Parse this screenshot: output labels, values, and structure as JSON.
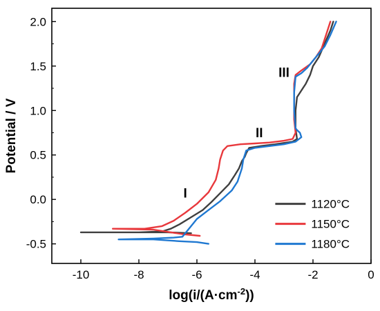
{
  "chart_data": {
    "type": "line",
    "xlabel": "log(i/(A·cm",
    "xlabel_sup": "-2",
    "xlabel_end": "))",
    "ylabel": "Potential / V",
    "xlim": [
      -11,
      0
    ],
    "ylim": [
      -0.72,
      2.15
    ],
    "x_ticks": [
      -10,
      -8,
      -6,
      -4,
      -2,
      0
    ],
    "x_tick_labels": [
      "-10",
      "-8",
      "-6",
      "-4",
      "-2",
      "0"
    ],
    "y_ticks": [
      -0.5,
      0.0,
      0.5,
      1.0,
      1.5,
      2.0
    ],
    "y_tick_labels": [
      "-0.5",
      "0.0",
      "0.5",
      "1.0",
      "1.5",
      "2.0"
    ],
    "grid": false,
    "legend_position": "bottom-right",
    "annotations": [
      {
        "text": "I",
        "x": -6.4,
        "y": 0.02
      },
      {
        "text": "II",
        "x": -3.85,
        "y": 0.7
      },
      {
        "text": "III",
        "x": -3.0,
        "y": 1.38
      }
    ],
    "series": [
      {
        "name": "1120°C",
        "color": "#3f3f3f",
        "points": [
          [
            -6.2,
            -0.38
          ],
          [
            -7.0,
            -0.37
          ],
          [
            -8.0,
            -0.37
          ],
          [
            -10.0,
            -0.37
          ],
          [
            -8.0,
            -0.37
          ],
          [
            -7.2,
            -0.36
          ],
          [
            -6.9,
            -0.33
          ],
          [
            -6.6,
            -0.28
          ],
          [
            -6.2,
            -0.2
          ],
          [
            -5.8,
            -0.12
          ],
          [
            -5.5,
            -0.03
          ],
          [
            -5.2,
            0.07
          ],
          [
            -4.9,
            0.17
          ],
          [
            -4.8,
            0.22
          ],
          [
            -4.7,
            0.27
          ],
          [
            -4.55,
            0.35
          ],
          [
            -4.45,
            0.43
          ],
          [
            -4.35,
            0.48
          ],
          [
            -4.3,
            0.52
          ],
          [
            -4.2,
            0.58
          ],
          [
            -3.8,
            0.6
          ],
          [
            -3.3,
            0.62
          ],
          [
            -2.9,
            0.64
          ],
          [
            -2.7,
            0.65
          ],
          [
            -2.55,
            0.68
          ],
          [
            -2.6,
            0.8
          ],
          [
            -2.6,
            1.0
          ],
          [
            -2.55,
            1.15
          ],
          [
            -2.45,
            1.2
          ],
          [
            -2.35,
            1.25
          ],
          [
            -2.25,
            1.3
          ],
          [
            -2.1,
            1.4
          ],
          [
            -2.0,
            1.5
          ],
          [
            -1.8,
            1.6
          ],
          [
            -1.6,
            1.75
          ],
          [
            -1.4,
            1.9
          ],
          [
            -1.3,
            2.0
          ]
        ]
      },
      {
        "name": "1150°C",
        "color": "#e8383c",
        "points": [
          [
            -5.9,
            -0.41
          ],
          [
            -6.5,
            -0.39
          ],
          [
            -7.5,
            -0.34
          ],
          [
            -8.9,
            -0.33
          ],
          [
            -7.8,
            -0.33
          ],
          [
            -7.2,
            -0.3
          ],
          [
            -6.8,
            -0.24
          ],
          [
            -6.4,
            -0.15
          ],
          [
            -6.0,
            -0.05
          ],
          [
            -5.6,
            0.08
          ],
          [
            -5.35,
            0.22
          ],
          [
            -5.25,
            0.35
          ],
          [
            -5.2,
            0.45
          ],
          [
            -5.1,
            0.55
          ],
          [
            -4.95,
            0.6
          ],
          [
            -4.5,
            0.62
          ],
          [
            -4.0,
            0.63
          ],
          [
            -3.5,
            0.64
          ],
          [
            -3.0,
            0.66
          ],
          [
            -2.7,
            0.68
          ],
          [
            -2.6,
            0.75
          ],
          [
            -2.65,
            0.9
          ],
          [
            -2.65,
            1.1
          ],
          [
            -2.65,
            1.3
          ],
          [
            -2.6,
            1.4
          ],
          [
            -2.4,
            1.45
          ],
          [
            -2.1,
            1.52
          ],
          [
            -1.9,
            1.6
          ],
          [
            -1.7,
            1.7
          ],
          [
            -1.55,
            1.85
          ],
          [
            -1.4,
            2.0
          ]
        ]
      },
      {
        "name": "1180°C",
        "color": "#1f78d1",
        "points": [
          [
            -5.6,
            -0.5
          ],
          [
            -6.0,
            -0.48
          ],
          [
            -6.6,
            -0.47
          ],
          [
            -7.5,
            -0.45
          ],
          [
            -8.7,
            -0.45
          ],
          [
            -7.5,
            -0.44
          ],
          [
            -6.8,
            -0.43
          ],
          [
            -6.5,
            -0.42
          ],
          [
            -6.4,
            -0.38
          ],
          [
            -6.2,
            -0.3
          ],
          [
            -6.0,
            -0.22
          ],
          [
            -5.6,
            -0.12
          ],
          [
            -5.2,
            -0.02
          ],
          [
            -4.8,
            0.1
          ],
          [
            -4.6,
            0.2
          ],
          [
            -4.45,
            0.35
          ],
          [
            -4.4,
            0.45
          ],
          [
            -4.3,
            0.55
          ],
          [
            -4.0,
            0.58
          ],
          [
            -3.5,
            0.6
          ],
          [
            -3.0,
            0.62
          ],
          [
            -2.6,
            0.65
          ],
          [
            -2.4,
            0.7
          ],
          [
            -2.45,
            0.75
          ],
          [
            -2.55,
            0.78
          ],
          [
            -2.6,
            0.8
          ],
          [
            -2.65,
            1.0
          ],
          [
            -2.65,
            1.2
          ],
          [
            -2.6,
            1.38
          ],
          [
            -2.4,
            1.42
          ],
          [
            -2.2,
            1.48
          ],
          [
            -1.9,
            1.6
          ],
          [
            -1.6,
            1.72
          ],
          [
            -1.4,
            1.85
          ],
          [
            -1.2,
            2.0
          ]
        ]
      }
    ]
  }
}
